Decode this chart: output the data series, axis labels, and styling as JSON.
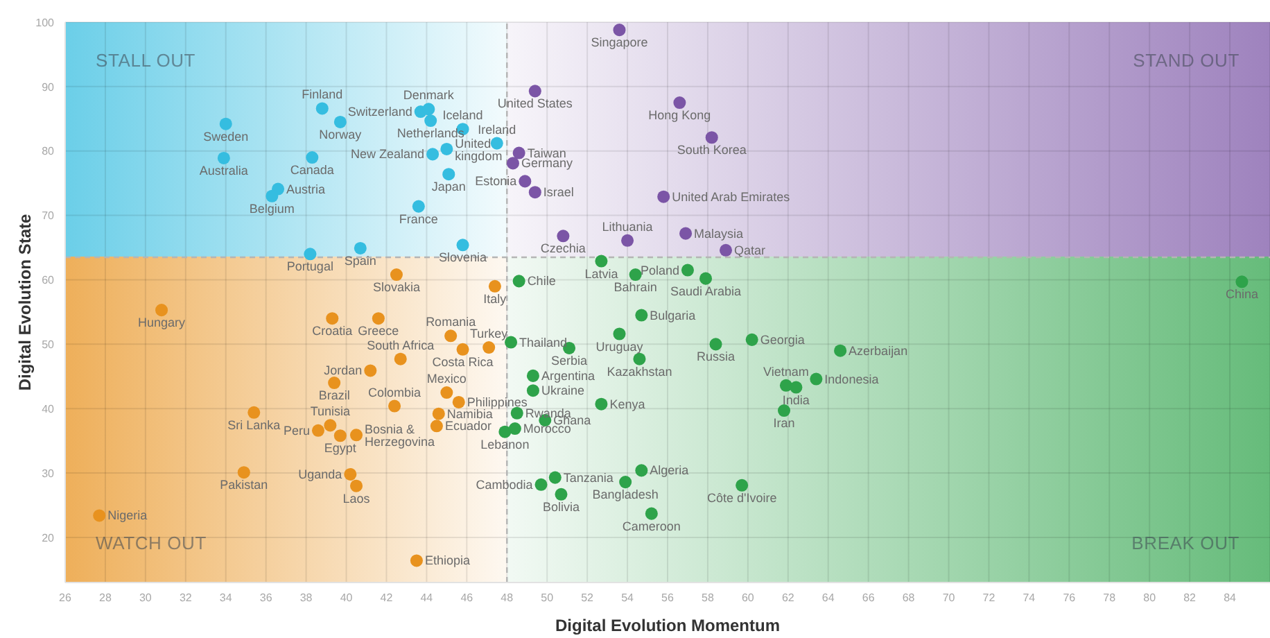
{
  "chart_data": {
    "type": "scatter",
    "xlabel": "Digital Evolution Momentum",
    "ylabel": "Digital Evolution State",
    "xlim": [
      26,
      86
    ],
    "ylim": [
      13,
      100
    ],
    "xticks": [
      26,
      28,
      30,
      32,
      34,
      36,
      38,
      40,
      42,
      44,
      46,
      48,
      50,
      52,
      54,
      56,
      58,
      60,
      62,
      64,
      66,
      68,
      70,
      72,
      74,
      76,
      78,
      80,
      82,
      84
    ],
    "yticks": [
      20,
      30,
      40,
      50,
      60,
      70,
      80,
      90,
      100
    ],
    "grid": true,
    "marker": "circle",
    "ref_lines": [
      {
        "axis": "x",
        "value": 48,
        "line_style": "dashed",
        "color": "#b5b5b5"
      },
      {
        "axis": "y",
        "value": 63.5,
        "line_style": "dashed",
        "color": "#b5b5b5"
      }
    ],
    "series": [
      {
        "color": "#35bde0",
        "x": [
          38.8,
          34.0,
          39.7,
          43.7,
          44.1,
          44.2,
          45.8,
          33.9,
          38.3,
          44.3,
          45.0,
          36.6,
          36.3,
          45.1,
          43.6,
          38.2,
          40.7,
          45.8,
          47.5
        ],
        "values": [
          86.6,
          84.2,
          84.5,
          86.1,
          86.5,
          84.7,
          83.4,
          78.9,
          79.0,
          79.5,
          80.3,
          74.1,
          73.0,
          76.4,
          71.4,
          64.0,
          64.9,
          65.4,
          81.2
        ]
      },
      {
        "color": "#7b55a6",
        "x": [
          53.6,
          49.4,
          56.6,
          58.2,
          48.6,
          48.3,
          48.9,
          49.4,
          55.8,
          50.8,
          54.0,
          56.9,
          58.9
        ],
        "values": [
          98.8,
          89.3,
          87.5,
          82.1,
          79.7,
          78.1,
          75.3,
          73.6,
          72.9,
          66.8,
          66.1,
          67.2,
          64.6
        ]
      },
      {
        "color": "#e8921e",
        "x": [
          47.4,
          30.8,
          39.3,
          41.6,
          42.5,
          45.2,
          47.1,
          45.8,
          42.7,
          41.2,
          39.4,
          42.4,
          45.0,
          45.6,
          44.6,
          44.5,
          35.4,
          39.2,
          38.6,
          39.7,
          40.5,
          34.9,
          40.2,
          40.5,
          27.7,
          43.5
        ],
        "values": [
          59.0,
          55.3,
          54.0,
          54.0,
          60.8,
          51.3,
          49.5,
          49.2,
          47.7,
          45.9,
          44.0,
          40.4,
          42.5,
          41.0,
          39.2,
          37.3,
          39.4,
          37.4,
          36.6,
          35.8,
          35.9,
          30.1,
          29.8,
          28.0,
          23.4,
          16.4
        ]
      },
      {
        "color": "#2ea34a",
        "x": [
          52.7,
          54.4,
          57.0,
          57.9,
          48.6,
          54.7,
          84.6,
          48.2,
          51.1,
          53.6,
          54.6,
          58.4,
          60.2,
          64.6,
          49.3,
          49.3,
          52.7,
          61.9,
          62.4,
          63.4,
          61.8,
          48.5,
          49.9,
          48.4,
          47.9,
          54.7,
          50.4,
          49.7,
          53.9,
          50.7,
          59.7,
          55.2
        ],
        "values": [
          62.9,
          60.8,
          61.5,
          60.2,
          59.8,
          54.5,
          59.7,
          50.3,
          49.4,
          51.6,
          47.7,
          50.0,
          50.7,
          49.0,
          45.1,
          42.8,
          40.7,
          43.6,
          43.3,
          44.6,
          39.7,
          39.3,
          38.2,
          36.9,
          36.4,
          30.4,
          29.3,
          28.2,
          28.6,
          26.7,
          28.1,
          23.7
        ]
      }
    ],
    "annotations": [
      {
        "text": "Finland",
        "x": 38.8,
        "y": 86.6
      },
      {
        "text": "Sweden",
        "x": 34.0,
        "y": 84.2
      },
      {
        "text": "Norway",
        "x": 39.7,
        "y": 84.5
      },
      {
        "text": "Switzerland",
        "x": 43.7,
        "y": 86.1
      },
      {
        "text": "Denmark",
        "x": 44.1,
        "y": 86.5
      },
      {
        "text": "Netherlands",
        "x": 44.2,
        "y": 84.7
      },
      {
        "text": "Iceland",
        "x": 45.8,
        "y": 83.4
      },
      {
        "text": "Australia",
        "x": 33.9,
        "y": 78.9
      },
      {
        "text": "Canada",
        "x": 38.3,
        "y": 79.0
      },
      {
        "text": "New Zealand",
        "x": 44.3,
        "y": 79.5
      },
      {
        "text": "United kingdom",
        "x": 45.0,
        "y": 80.3
      },
      {
        "text": "Austria",
        "x": 36.6,
        "y": 74.1
      },
      {
        "text": "Belgium",
        "x": 36.3,
        "y": 73.0
      },
      {
        "text": "Japan",
        "x": 45.1,
        "y": 76.4
      },
      {
        "text": "France",
        "x": 43.6,
        "y": 71.4
      },
      {
        "text": "Portugal",
        "x": 38.2,
        "y": 64.0
      },
      {
        "text": "Spain",
        "x": 40.7,
        "y": 64.9
      },
      {
        "text": "Slovenia",
        "x": 45.8,
        "y": 65.4
      },
      {
        "text": "Ireland",
        "x": 47.5,
        "y": 81.2
      },
      {
        "text": "Singapore",
        "x": 53.6,
        "y": 98.8
      },
      {
        "text": "United States",
        "x": 49.4,
        "y": 89.3
      },
      {
        "text": "Hong Kong",
        "x": 56.6,
        "y": 87.5
      },
      {
        "text": "South Korea",
        "x": 58.2,
        "y": 82.1
      },
      {
        "text": "Taiwan",
        "x": 48.6,
        "y": 79.7
      },
      {
        "text": "Germany",
        "x": 48.3,
        "y": 78.1
      },
      {
        "text": "Estonia",
        "x": 48.9,
        "y": 75.3
      },
      {
        "text": "Israel",
        "x": 49.4,
        "y": 73.6
      },
      {
        "text": "United Arab Emirates",
        "x": 55.8,
        "y": 72.9
      },
      {
        "text": "Czechia",
        "x": 50.8,
        "y": 66.8
      },
      {
        "text": "Lithuania",
        "x": 54.0,
        "y": 66.1
      },
      {
        "text": "Malaysia",
        "x": 56.9,
        "y": 67.2
      },
      {
        "text": "Qatar",
        "x": 58.9,
        "y": 64.6
      },
      {
        "text": "Italy",
        "x": 47.4,
        "y": 59.0
      },
      {
        "text": "Hungary",
        "x": 30.8,
        "y": 55.3
      },
      {
        "text": "Croatia",
        "x": 39.3,
        "y": 54.0
      },
      {
        "text": "Greece",
        "x": 41.6,
        "y": 54.0
      },
      {
        "text": "Slovakia",
        "x": 42.5,
        "y": 60.8
      },
      {
        "text": "Romania",
        "x": 45.2,
        "y": 51.3
      },
      {
        "text": "Turkey",
        "x": 47.1,
        "y": 49.5
      },
      {
        "text": "Costa Rica",
        "x": 45.8,
        "y": 49.2
      },
      {
        "text": "South Africa",
        "x": 42.7,
        "y": 47.7
      },
      {
        "text": "Jordan",
        "x": 41.2,
        "y": 45.9
      },
      {
        "text": "Brazil",
        "x": 39.4,
        "y": 44.0
      },
      {
        "text": "Colombia",
        "x": 42.4,
        "y": 40.4
      },
      {
        "text": "Mexico",
        "x": 45.0,
        "y": 42.5
      },
      {
        "text": "Philippines",
        "x": 45.6,
        "y": 41.0
      },
      {
        "text": "Namibia",
        "x": 44.6,
        "y": 39.2
      },
      {
        "text": "Ecuador",
        "x": 44.5,
        "y": 37.3
      },
      {
        "text": "Sri Lanka",
        "x": 35.4,
        "y": 39.4
      },
      {
        "text": "Tunisia",
        "x": 39.2,
        "y": 37.4
      },
      {
        "text": "Peru",
        "x": 38.6,
        "y": 36.6
      },
      {
        "text": "Egypt",
        "x": 39.7,
        "y": 35.8
      },
      {
        "text": "Bosnia & Herzegovina",
        "x": 40.5,
        "y": 35.9
      },
      {
        "text": "Pakistan",
        "x": 34.9,
        "y": 30.1
      },
      {
        "text": "Uganda",
        "x": 40.2,
        "y": 29.8
      },
      {
        "text": "Laos",
        "x": 40.5,
        "y": 28.0
      },
      {
        "text": "Nigeria",
        "x": 27.7,
        "y": 23.4
      },
      {
        "text": "Ethiopia",
        "x": 43.5,
        "y": 16.4
      },
      {
        "text": "Latvia",
        "x": 52.7,
        "y": 62.9
      },
      {
        "text": "Bahrain",
        "x": 54.4,
        "y": 60.8
      },
      {
        "text": "Poland",
        "x": 57.0,
        "y": 61.5
      },
      {
        "text": "Saudi Arabia",
        "x": 57.9,
        "y": 60.2
      },
      {
        "text": "Chile",
        "x": 48.6,
        "y": 59.8
      },
      {
        "text": "Bulgaria",
        "x": 54.7,
        "y": 54.5
      },
      {
        "text": "China",
        "x": 84.6,
        "y": 59.7
      },
      {
        "text": "Thailand",
        "x": 48.2,
        "y": 50.3
      },
      {
        "text": "Serbia",
        "x": 51.1,
        "y": 49.4
      },
      {
        "text": "Uruguay",
        "x": 53.6,
        "y": 51.6
      },
      {
        "text": "Kazakhstan",
        "x": 54.6,
        "y": 47.7
      },
      {
        "text": "Russia",
        "x": 58.4,
        "y": 50.0
      },
      {
        "text": "Georgia",
        "x": 60.2,
        "y": 50.7
      },
      {
        "text": "Azerbaijan",
        "x": 64.6,
        "y": 49.0
      },
      {
        "text": "Argentina",
        "x": 49.3,
        "y": 45.1
      },
      {
        "text": "Ukraine",
        "x": 49.3,
        "y": 42.8
      },
      {
        "text": "Kenya",
        "x": 52.7,
        "y": 40.7
      },
      {
        "text": "Vietnam",
        "x": 61.9,
        "y": 43.6
      },
      {
        "text": "India",
        "x": 62.4,
        "y": 43.3
      },
      {
        "text": "Indonesia",
        "x": 63.4,
        "y": 44.6
      },
      {
        "text": "Iran",
        "x": 61.8,
        "y": 39.7
      },
      {
        "text": "Rwanda",
        "x": 48.5,
        "y": 39.3
      },
      {
        "text": "Ghana",
        "x": 49.9,
        "y": 38.2
      },
      {
        "text": "Morocco",
        "x": 48.4,
        "y": 36.9
      },
      {
        "text": "Lebanon",
        "x": 47.9,
        "y": 36.4
      },
      {
        "text": "Algeria",
        "x": 54.7,
        "y": 30.4
      },
      {
        "text": "Tanzania",
        "x": 50.4,
        "y": 29.3
      },
      {
        "text": "Cambodia",
        "x": 49.7,
        "y": 28.2
      },
      {
        "text": "Bangladesh",
        "x": 53.9,
        "y": 28.6
      },
      {
        "text": "Bolivia",
        "x": 50.7,
        "y": 26.7
      },
      {
        "text": "Côte d'Ivoire",
        "x": 59.7,
        "y": 28.1
      },
      {
        "text": "Cameroon",
        "x": 55.2,
        "y": 23.7
      },
      "STALL OUT",
      "STAND OUT",
      "WATCH OUT",
      "BREAK OUT"
    ]
  }
}
